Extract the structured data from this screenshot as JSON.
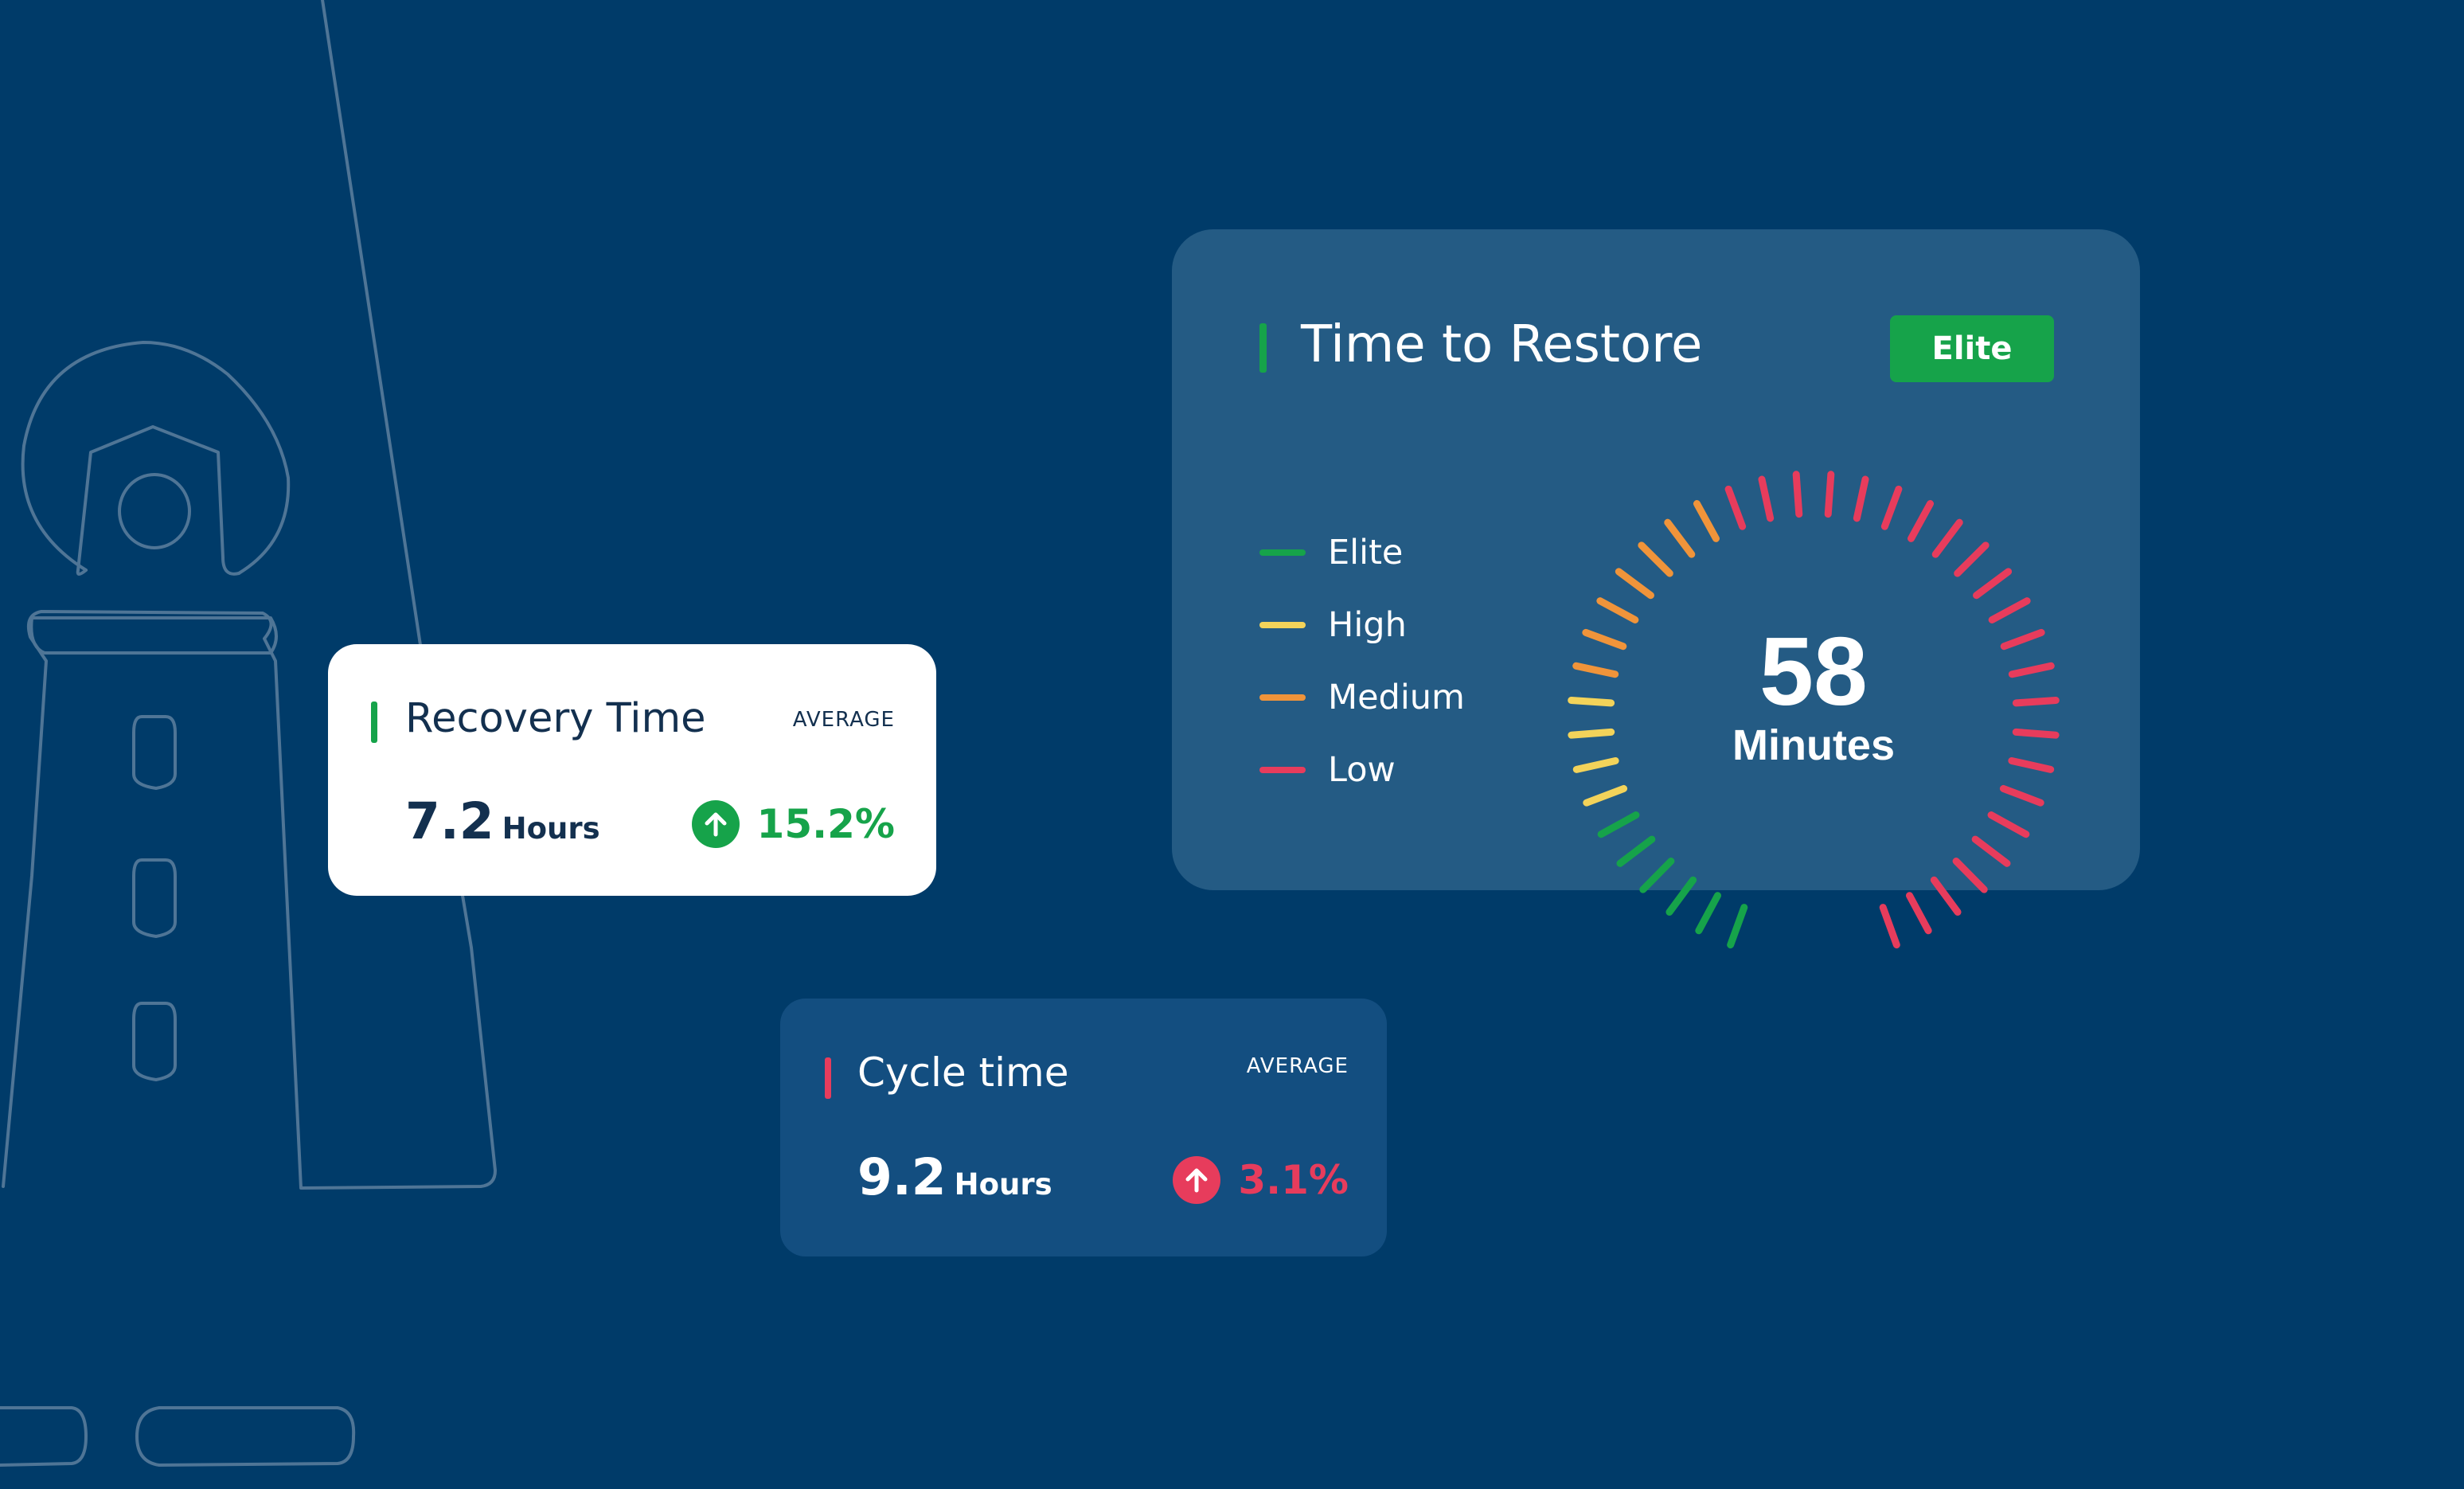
{
  "recovery": {
    "title": "Recovery Time",
    "tag": "AVERAGE",
    "value": "7.2",
    "unit": "Hours",
    "delta": "15.2%",
    "trend": "up",
    "trend_icon": "arrow-up-icon",
    "accent_color": "#16a34a"
  },
  "cycle": {
    "title": "Cycle time",
    "tag": "AVERAGE",
    "value": "9.2",
    "unit": "Hours",
    "delta": "3.1%",
    "trend": "up",
    "trend_icon": "arrow-up-icon",
    "accent_color": "#e73c5c"
  },
  "restore": {
    "title": "Time to Restore",
    "badge": "Elite",
    "legend": [
      {
        "label": "Elite",
        "color": "#16a34a"
      },
      {
        "label": "High",
        "color": "#f3d35a"
      },
      {
        "label": "Medium",
        "color": "#f0943a"
      },
      {
        "label": "Low",
        "color": "#e73c5c"
      }
    ],
    "gauge": {
      "value": "58",
      "unit": "Minutes"
    }
  }
}
